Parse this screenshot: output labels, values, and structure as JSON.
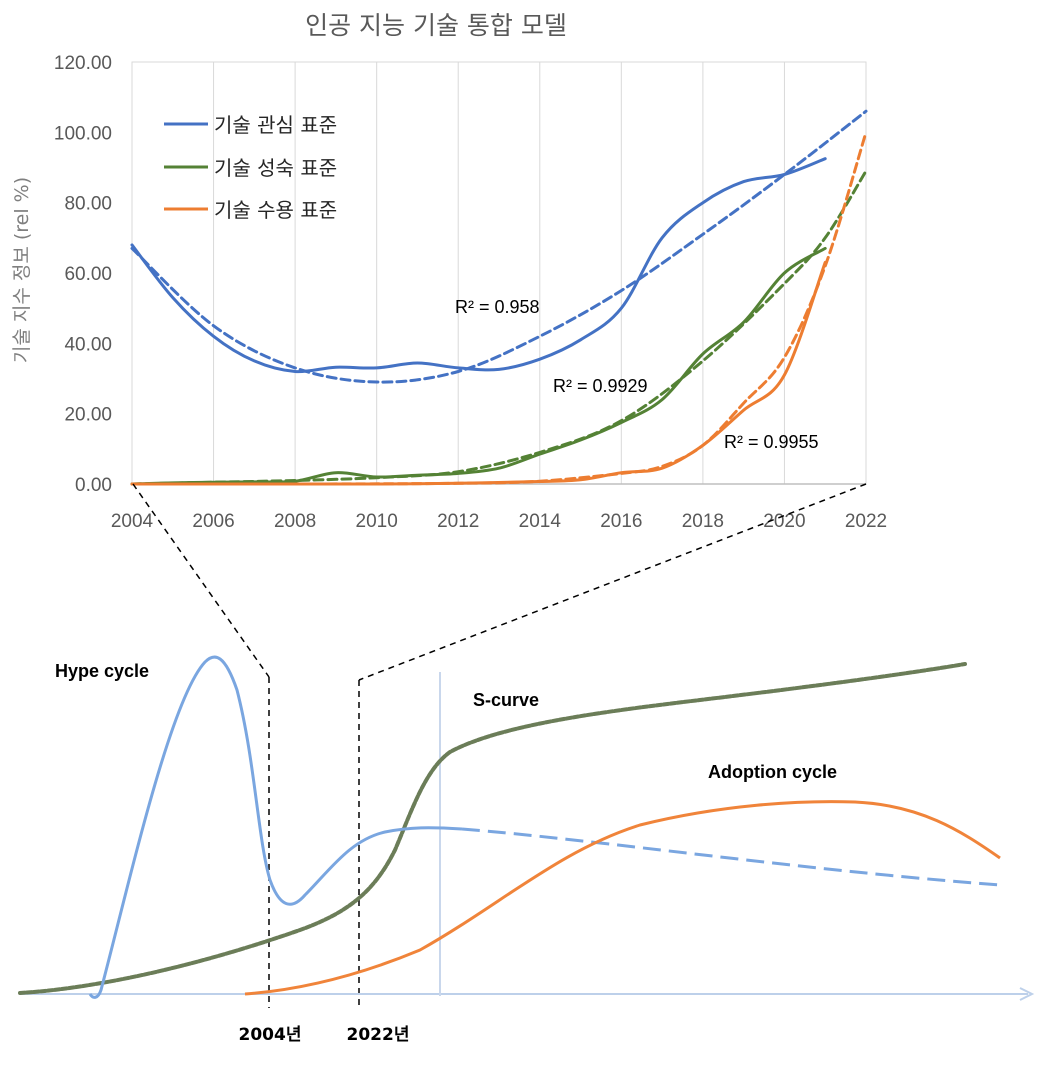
{
  "chart_data": [
    {
      "type": "line",
      "title": "인공 지능 기술 통합 모델",
      "ylabel": "기술 지수 정보 (rel %)",
      "xlabel": "",
      "xlim": [
        2004,
        2022
      ],
      "ylim": [
        0,
        120
      ],
      "x_ticks": [
        "2004",
        "2006",
        "2008",
        "2010",
        "2012",
        "2014",
        "2016",
        "2018",
        "2020",
        "2022"
      ],
      "y_ticks": [
        "0.00",
        "20.00",
        "40.00",
        "60.00",
        "80.00",
        "100.00",
        "120.00"
      ],
      "grid": "vertical",
      "legend_position": "top-left",
      "colors": {
        "interest": "#4472c4",
        "maturity": "#548235",
        "adoption": "#ed7d31"
      },
      "series": [
        {
          "name": "기술 관심 표준",
          "color": "#4472c4",
          "style": "solid",
          "x": [
            2004,
            2005,
            2006,
            2007,
            2008,
            2009,
            2010,
            2011,
            2012,
            2013,
            2014,
            2015,
            2016,
            2017,
            2018,
            2019,
            2020,
            2021
          ],
          "y": [
            68,
            53,
            42,
            35,
            32,
            33.2,
            33,
            34.4,
            33,
            32.6,
            35.5,
            41,
            50,
            70,
            80,
            86,
            88,
            92.5
          ]
        },
        {
          "name": "기술 성숙 표준",
          "color": "#548235",
          "style": "solid",
          "x": [
            2004,
            2005,
            2006,
            2007,
            2008,
            2009,
            2010,
            2011,
            2012,
            2013,
            2014,
            2015,
            2016,
            2017,
            2018,
            2019,
            2020,
            2021
          ],
          "y": [
            0,
            0.3,
            0.5,
            0.6,
            0.8,
            3.2,
            2.0,
            2.5,
            3.0,
            4.5,
            8.5,
            12.5,
            17.5,
            24,
            37,
            46,
            60,
            67
          ]
        },
        {
          "name": "기술 수용 표준",
          "color": "#ed7d31",
          "style": "solid",
          "x": [
            2004,
            2006,
            2008,
            2010,
            2012,
            2014,
            2015,
            2016,
            2017,
            2018,
            2019,
            2020,
            2021
          ],
          "y": [
            0,
            0,
            0,
            0,
            0.2,
            0.7,
            1.2,
            3.2,
            4.5,
            11,
            21,
            31,
            63
          ]
        },
        {
          "trend_of": "기술 관심 표준",
          "color": "#4472c4",
          "style": "dashed",
          "r_squared_label": "R² = 0.958",
          "x": [
            2004,
            2006,
            2008,
            2010,
            2012,
            2014,
            2016,
            2018,
            2020,
            2022
          ],
          "y": [
            67,
            45,
            33,
            29,
            32,
            42,
            55,
            71,
            88,
            106
          ]
        },
        {
          "trend_of": "기술 성숙 표준",
          "color": "#548235",
          "style": "dashed",
          "r_squared_label": "R² = 0.9929",
          "x": [
            2004,
            2006,
            2008,
            2010,
            2012,
            2014,
            2016,
            2018,
            2020,
            2021,
            2022
          ],
          "y": [
            0,
            0.5,
            1,
            1.8,
            3.5,
            9,
            18,
            35,
            57,
            70,
            89
          ]
        },
        {
          "trend_of": "기술 수용 표준",
          "color": "#ed7d31",
          "style": "dashed",
          "r_squared_label": "R² = 0.9955",
          "x": [
            2004,
            2008,
            2012,
            2014,
            2016,
            2017,
            2018,
            2019,
            2020,
            2021,
            2022
          ],
          "y": [
            0,
            0,
            0.2,
            0.8,
            3,
            5,
            11,
            23,
            36,
            62,
            100
          ]
        }
      ]
    },
    {
      "type": "line",
      "title": "",
      "xlabel": "",
      "ylabel": "",
      "series": [
        {
          "name": "Hype cycle",
          "color": "#7aa6e0"
        },
        {
          "name": "S-curve",
          "color": "#6b7d58"
        },
        {
          "name": "Adoption cycle",
          "color": "#f0843a"
        }
      ],
      "markers": [
        "2004년",
        "2022년"
      ]
    }
  ]
}
